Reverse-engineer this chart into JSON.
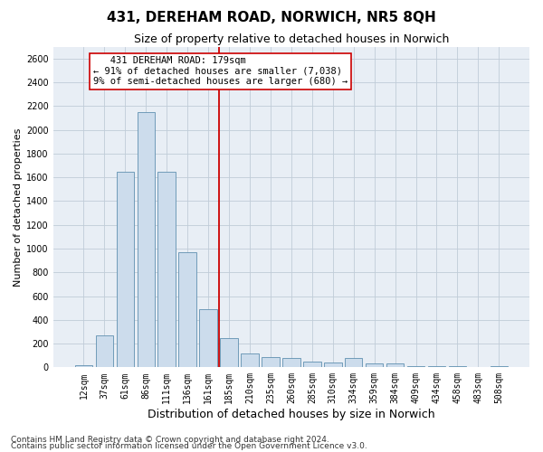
{
  "title": "431, DEREHAM ROAD, NORWICH, NR5 8QH",
  "subtitle": "Size of property relative to detached houses in Norwich",
  "xlabel": "Distribution of detached houses by size in Norwich",
  "ylabel": "Number of detached properties",
  "bin_labels": [
    "12sqm",
    "37sqm",
    "61sqm",
    "86sqm",
    "111sqm",
    "136sqm",
    "161sqm",
    "185sqm",
    "210sqm",
    "235sqm",
    "260sqm",
    "285sqm",
    "310sqm",
    "334sqm",
    "359sqm",
    "384sqm",
    "409sqm",
    "434sqm",
    "458sqm",
    "483sqm",
    "508sqm"
  ],
  "bar_values": [
    18,
    270,
    1650,
    2150,
    1650,
    970,
    490,
    245,
    115,
    90,
    75,
    50,
    40,
    75,
    35,
    35,
    12,
    12,
    8,
    4,
    12
  ],
  "bar_color": "#ccdcec",
  "bar_edgecolor": "#6090b0",
  "red_line_index": 7,
  "annotation_line1": "   431 DEREHAM ROAD: 179sqm",
  "annotation_line2": "← 91% of detached houses are smaller (7,038)",
  "annotation_line3": "9% of semi-detached houses are larger (680) →",
  "annotation_box_edgecolor": "#cc0000",
  "annotation_box_facecolor": "#ffffff",
  "red_line_color": "#cc0000",
  "ylim": [
    0,
    2700
  ],
  "yticks": [
    0,
    200,
    400,
    600,
    800,
    1000,
    1200,
    1400,
    1600,
    1800,
    2000,
    2200,
    2400,
    2600
  ],
  "grid_color": "#c0ccd8",
  "plot_bg_color": "#e8eef5",
  "footer_line1": "Contains HM Land Registry data © Crown copyright and database right 2024.",
  "footer_line2": "Contains public sector information licensed under the Open Government Licence v3.0.",
  "title_fontsize": 11,
  "subtitle_fontsize": 9,
  "xlabel_fontsize": 9,
  "ylabel_fontsize": 8,
  "tick_fontsize": 7,
  "annotation_fontsize": 7.5,
  "footer_fontsize": 6.5
}
